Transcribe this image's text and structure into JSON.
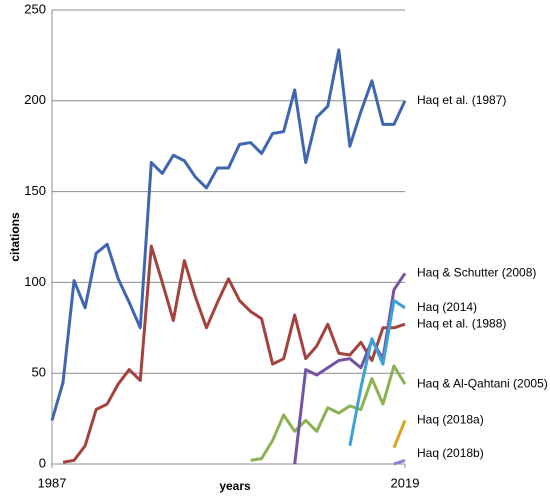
{
  "chart_data": {
    "type": "line",
    "x_label": "years",
    "y_label": "citations",
    "x": [
      1987,
      1988,
      1989,
      1990,
      1991,
      1992,
      1993,
      1994,
      1995,
      1996,
      1997,
      1998,
      1999,
      2000,
      2001,
      2002,
      2003,
      2004,
      2005,
      2006,
      2007,
      2008,
      2009,
      2010,
      2011,
      2012,
      2013,
      2014,
      2015,
      2016,
      2017,
      2018,
      2019
    ],
    "xlim": [
      1987,
      2019
    ],
    "xticks": [
      1987,
      2019
    ],
    "ylim": [
      0,
      250
    ],
    "yticks": [
      0,
      50,
      100,
      150,
      200,
      250
    ],
    "grid": true,
    "series": [
      {
        "name": "Haq et al. (1987)",
        "color": "#3f67b1",
        "values": [
          24,
          45,
          101,
          86,
          116,
          121,
          102,
          89,
          75,
          166,
          160,
          170,
          167,
          158,
          152,
          163,
          163,
          176,
          177,
          171,
          182,
          183,
          206,
          166,
          191,
          197,
          228,
          175,
          194,
          211,
          187,
          187,
          200
        ]
      },
      {
        "name": "Haq et al. (1988)",
        "color": "#a4433e",
        "values": [
          null,
          1,
          2,
          10,
          30,
          33,
          44,
          52,
          46,
          120,
          100,
          79,
          112,
          92,
          75,
          89,
          102,
          90,
          84,
          80,
          55,
          58,
          82,
          58,
          65,
          77,
          61,
          60,
          67,
          57,
          75,
          75,
          77
        ]
      },
      {
        "name": "Haq & Al-Qahtani (2005)",
        "color": "#8db152",
        "values": [
          null,
          null,
          null,
          null,
          null,
          null,
          null,
          null,
          null,
          null,
          null,
          null,
          null,
          null,
          null,
          null,
          null,
          null,
          2,
          3,
          13,
          27,
          18,
          24,
          18,
          31,
          28,
          32,
          30,
          47,
          33,
          54,
          44
        ]
      },
      {
        "name": "Haq & Schutter (2008)",
        "color": "#7353a3",
        "values": [
          null,
          null,
          null,
          null,
          null,
          null,
          null,
          null,
          null,
          null,
          null,
          null,
          null,
          null,
          null,
          null,
          null,
          null,
          null,
          null,
          null,
          null,
          0,
          52,
          49,
          53,
          57,
          58,
          53,
          68,
          58,
          96,
          105
        ]
      },
      {
        "name": "Haq (2014)",
        "color": "#3aa3d6",
        "values": [
          null,
          null,
          null,
          null,
          null,
          null,
          null,
          null,
          null,
          null,
          null,
          null,
          null,
          null,
          null,
          null,
          null,
          null,
          null,
          null,
          null,
          null,
          null,
          null,
          null,
          null,
          null,
          10,
          42,
          69,
          55,
          90,
          86
        ]
      },
      {
        "name": "Haq (2018a)",
        "color": "#dba321",
        "values": [
          null,
          null,
          null,
          null,
          null,
          null,
          null,
          null,
          null,
          null,
          null,
          null,
          null,
          null,
          null,
          null,
          null,
          null,
          null,
          null,
          null,
          null,
          null,
          null,
          null,
          null,
          null,
          null,
          null,
          null,
          null,
          9,
          24
        ]
      },
      {
        "name": "Haq (2018b)",
        "color": "#8b7fcc",
        "values": [
          null,
          null,
          null,
          null,
          null,
          null,
          null,
          null,
          null,
          null,
          null,
          null,
          null,
          null,
          null,
          null,
          null,
          null,
          null,
          null,
          null,
          null,
          null,
          null,
          null,
          null,
          null,
          null,
          null,
          null,
          null,
          0,
          2
        ]
      }
    ]
  }
}
